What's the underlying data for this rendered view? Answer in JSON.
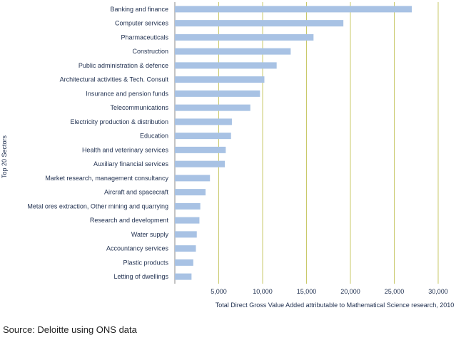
{
  "chart_data": {
    "type": "bar",
    "orientation": "horizontal",
    "categories": [
      "Banking and finance",
      "Computer services",
      "Pharmaceuticals",
      "Construction",
      "Public administration  & defence",
      "Architectural activities & Tech. Consult",
      "Insurance and pension funds",
      "Telecommunications",
      "Electricity production & distribution",
      "Education",
      "Health and veterinary services",
      "Auxiliary financial services",
      "Market research, management consultancy",
      "Aircraft and spacecraft",
      "Metal ores extraction, Other mining and quarrying",
      "Research and development",
      "Water supply",
      "Accountancy services",
      "Plastic products",
      "Letting of dwellings"
    ],
    "values": [
      27000,
      19200,
      15800,
      13200,
      11600,
      10200,
      9700,
      8600,
      6500,
      6400,
      5800,
      5700,
      4000,
      3500,
      2900,
      2800,
      2500,
      2400,
      2100,
      1900
    ],
    "xlabel": "Total Direct Gross Value Added attributable to Mathematical Science research, 2010",
    "ylabel": "Top 20 Sectors",
    "xlim": [
      0,
      30000
    ],
    "xticks": [
      5000,
      10000,
      15000,
      20000,
      25000,
      30000
    ],
    "xtick_labels": [
      "5,000",
      "10,000",
      "15,000",
      "20,000",
      "25,000",
      "30,000"
    ],
    "grid": "vertical",
    "bar_color": "#a8c2e4",
    "gridline_color": "#c9c96a"
  },
  "source": "Source: Deloitte using ONS data"
}
